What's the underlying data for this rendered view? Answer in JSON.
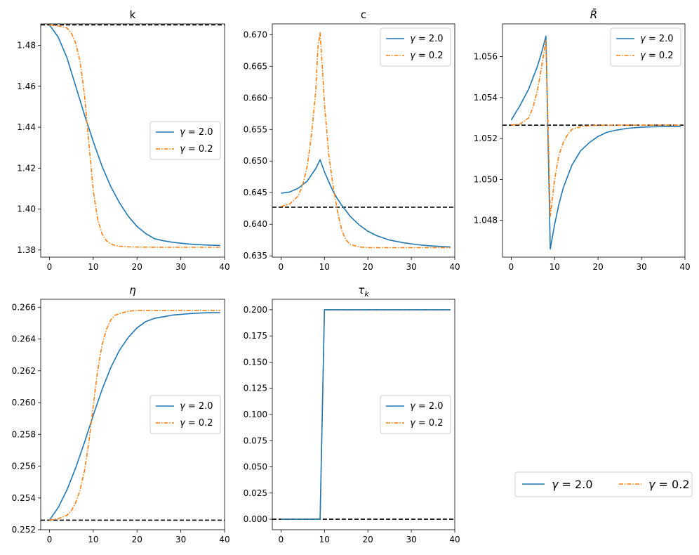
{
  "figure": {
    "bottom_legend": {
      "series1": {
        "greek": "γ",
        "eq": " = 2.0"
      },
      "series2": {
        "greek": "γ",
        "eq": " = 0.2"
      }
    }
  },
  "colors": {
    "gamma_2": "#1f77b4",
    "gamma_02": "#ff7f0e",
    "steady_state": "#000000"
  },
  "chart_data": [
    {
      "id": "k",
      "type": "line",
      "title": "k",
      "xlim": [
        -2,
        40
      ],
      "ylim": [
        1.3765,
        1.4905
      ],
      "xticks": [
        0,
        10,
        20,
        30,
        40
      ],
      "yticks": [
        1.38,
        1.4,
        1.42,
        1.44,
        1.46,
        1.48
      ],
      "ytick_format": 2,
      "legend": "center right",
      "steady_state": 1.49,
      "series": [
        {
          "name": "γ = 2.0",
          "style": "solid",
          "x": [
            0,
            2,
            4,
            6,
            8,
            10,
            12,
            14,
            16,
            18,
            20,
            22,
            24,
            26,
            28,
            30,
            32,
            34,
            36,
            39
          ],
          "y": [
            1.49,
            1.484,
            1.474,
            1.46,
            1.446,
            1.433,
            1.421,
            1.411,
            1.403,
            1.3965,
            1.3915,
            1.388,
            1.3855,
            1.3845,
            1.3838,
            1.3833,
            1.3829,
            1.3826,
            1.3824,
            1.3822
          ]
        },
        {
          "name": "γ = 0.2",
          "style": "dashdot",
          "x": [
            0,
            2,
            4,
            5,
            6,
            7,
            8,
            9,
            10,
            11,
            12,
            13,
            14,
            15,
            16,
            18,
            20,
            25,
            30,
            39
          ],
          "y": [
            1.49,
            1.4895,
            1.4885,
            1.486,
            1.481,
            1.472,
            1.456,
            1.432,
            1.409,
            1.395,
            1.388,
            1.3845,
            1.383,
            1.3822,
            1.3818,
            1.3815,
            1.3814,
            1.3813,
            1.3813,
            1.3813
          ]
        }
      ]
    },
    {
      "id": "c",
      "type": "line",
      "title": "c",
      "xlim": [
        -2,
        40
      ],
      "ylim": [
        0.6348,
        0.6717
      ],
      "xticks": [
        0,
        10,
        20,
        30,
        40
      ],
      "yticks": [
        0.635,
        0.64,
        0.645,
        0.65,
        0.655,
        0.66,
        0.665,
        0.67
      ],
      "ytick_format": 3,
      "legend": "upper right",
      "steady_state": 0.6427,
      "series": [
        {
          "name": "γ = 2.0",
          "style": "solid",
          "x": [
            0,
            2,
            4,
            6,
            7,
            8,
            9,
            10,
            11,
            12,
            13,
            14,
            16,
            18,
            20,
            22,
            25,
            28,
            31,
            34,
            39
          ],
          "y": [
            0.6449,
            0.6451,
            0.6457,
            0.6468,
            0.6478,
            0.6488,
            0.6502,
            0.6483,
            0.6467,
            0.6452,
            0.644,
            0.643,
            0.6412,
            0.6399,
            0.6389,
            0.6382,
            0.6375,
            0.6371,
            0.6368,
            0.6366,
            0.6364
          ]
        },
        {
          "name": "γ = 0.2",
          "style": "dashdot",
          "x": [
            0,
            2,
            4,
            5,
            6,
            7,
            8,
            8.5,
            9,
            9.5,
            10,
            11,
            12,
            13,
            14,
            15,
            16,
            18,
            20,
            25,
            30,
            39
          ],
          "y": [
            0.6428,
            0.6432,
            0.6445,
            0.6462,
            0.649,
            0.654,
            0.661,
            0.668,
            0.6703,
            0.665,
            0.659,
            0.651,
            0.646,
            0.642,
            0.639,
            0.6375,
            0.6368,
            0.6364,
            0.6363,
            0.6363,
            0.6363,
            0.6363
          ]
        }
      ]
    },
    {
      "id": "rbar",
      "type": "line",
      "title": "R̄",
      "title_italic": true,
      "xlim": [
        -2,
        40
      ],
      "ylim": [
        1.0462,
        1.0576
      ],
      "xticks": [
        0,
        10,
        20,
        30,
        40
      ],
      "yticks": [
        1.048,
        1.05,
        1.052,
        1.054,
        1.056
      ],
      "ytick_format": 3,
      "legend": "upper right",
      "steady_state": 1.05265,
      "series": [
        {
          "name": "γ = 2.0",
          "style": "solid",
          "x": [
            0,
            2,
            4,
            6,
            7,
            8,
            9,
            10,
            11,
            12,
            14,
            16,
            18,
            20,
            22,
            24,
            27,
            30,
            33,
            36,
            39
          ],
          "y": [
            1.0529,
            1.0536,
            1.0544,
            1.0555,
            1.0562,
            1.057,
            1.0466,
            1.0478,
            1.0488,
            1.0496,
            1.0507,
            1.0514,
            1.0518,
            1.0521,
            1.0523,
            1.0524,
            1.0525,
            1.05255,
            1.05257,
            1.05258,
            1.05259
          ]
        },
        {
          "name": "γ = 0.2",
          "style": "dashdot",
          "x": [
            0,
            2,
            4,
            5,
            6,
            7,
            8,
            9,
            10,
            11,
            12,
            13,
            14,
            15,
            16,
            18,
            20,
            25,
            30,
            39
          ],
          "y": [
            1.05265,
            1.0527,
            1.053,
            1.0535,
            1.0543,
            1.0555,
            1.0568,
            1.0482,
            1.05,
            1.0512,
            1.0518,
            1.0522,
            1.05245,
            1.0525,
            1.05258,
            1.05262,
            1.05264,
            1.05265,
            1.05265,
            1.05265
          ]
        }
      ]
    },
    {
      "id": "eta",
      "type": "line",
      "title": "η",
      "title_italic": true,
      "xlim": [
        -2,
        40
      ],
      "ylim": [
        0.252,
        0.2665
      ],
      "xticks": [
        0,
        10,
        20,
        30,
        40
      ],
      "yticks": [
        0.252,
        0.254,
        0.256,
        0.258,
        0.26,
        0.262,
        0.264,
        0.266
      ],
      "ytick_format": 3,
      "legend": "center right",
      "steady_state": 0.2526,
      "series": [
        {
          "name": "γ = 2.0",
          "style": "solid",
          "x": [
            0,
            2,
            4,
            6,
            8,
            10,
            12,
            14,
            16,
            18,
            20,
            22,
            24,
            26,
            28,
            30,
            32,
            34,
            36,
            39
          ],
          "y": [
            0.2526,
            0.2534,
            0.2545,
            0.2559,
            0.2575,
            0.2592,
            0.2608,
            0.2622,
            0.2633,
            0.2641,
            0.2647,
            0.2651,
            0.2653,
            0.2654,
            0.2655,
            0.26555,
            0.2656,
            0.26563,
            0.26565,
            0.26566
          ]
        },
        {
          "name": "γ = 0.2",
          "style": "dashdot",
          "x": [
            0,
            2,
            4,
            5,
            6,
            7,
            8,
            9,
            10,
            11,
            12,
            13,
            14,
            15,
            16,
            18,
            20,
            25,
            30,
            39
          ],
          "y": [
            0.2526,
            0.2527,
            0.2529,
            0.2532,
            0.2537,
            0.2545,
            0.2557,
            0.2575,
            0.2598,
            0.262,
            0.2636,
            0.2646,
            0.2652,
            0.2655,
            0.2656,
            0.26575,
            0.2658,
            0.2658,
            0.2658,
            0.2658
          ]
        }
      ]
    },
    {
      "id": "tauk",
      "type": "line",
      "title": "τ",
      "title_sub": "k",
      "title_italic": true,
      "xlim": [
        -2,
        40
      ],
      "ylim": [
        -0.01,
        0.21
      ],
      "xticks": [
        0,
        10,
        20,
        30,
        40
      ],
      "yticks": [
        0.0,
        0.025,
        0.05,
        0.075,
        0.1,
        0.125,
        0.15,
        0.175,
        0.2
      ],
      "ytick_format": 3,
      "legend": "center right",
      "steady_state": 0.0,
      "series": [
        {
          "name": "γ = 2.0",
          "style": "solid",
          "x": [
            0,
            9,
            10,
            39
          ],
          "y": [
            0.0,
            0.0,
            0.2,
            0.2
          ]
        },
        {
          "name": "γ = 0.2",
          "style": "dashdot",
          "x": [
            0,
            9,
            10,
            39
          ],
          "y": [
            0.0,
            0.0,
            0.2,
            0.2
          ]
        }
      ]
    }
  ]
}
